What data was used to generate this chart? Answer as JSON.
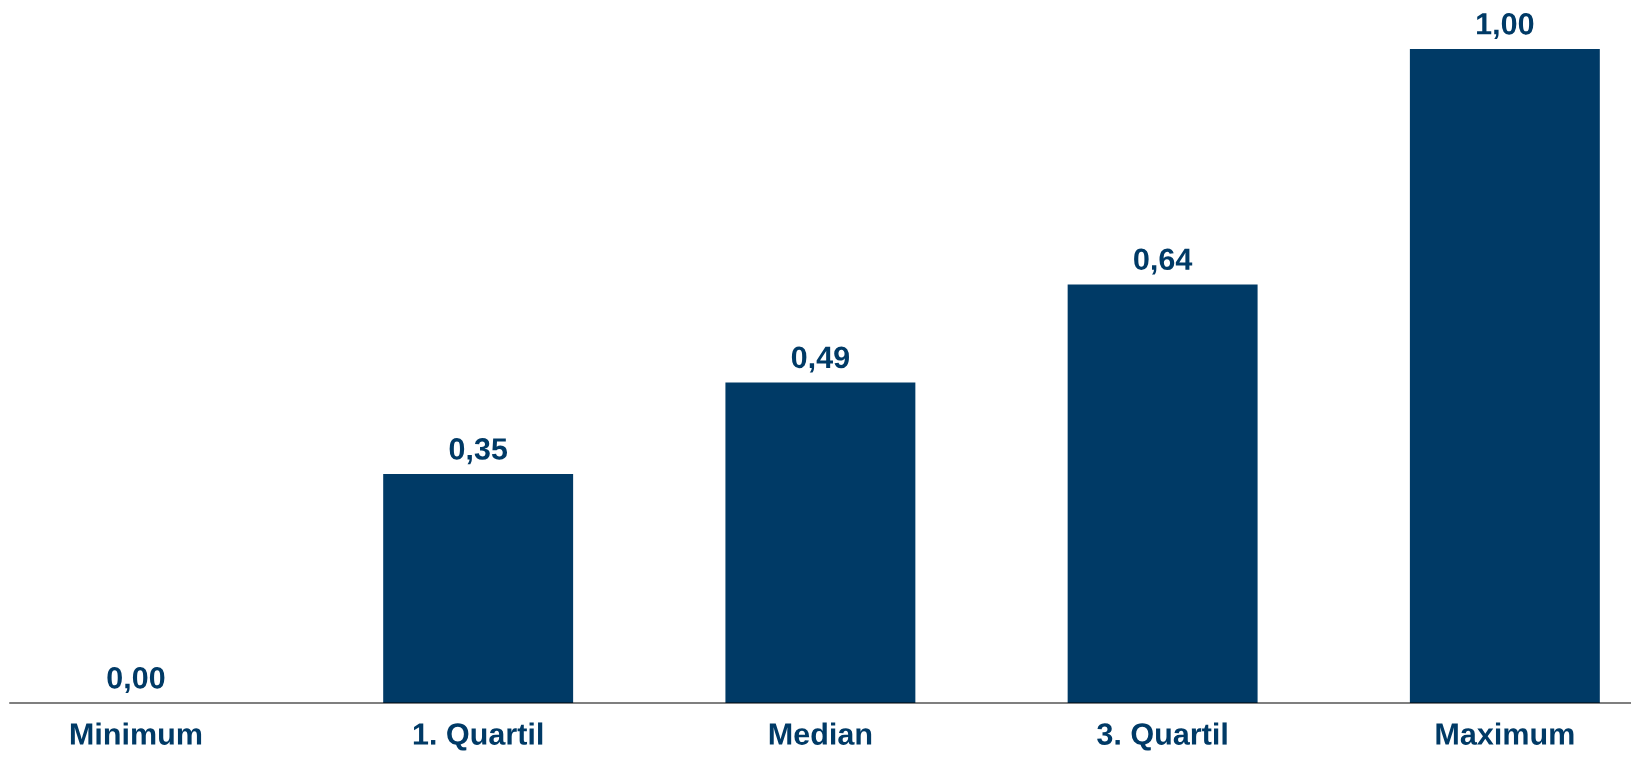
{
  "chart_data": {
    "type": "bar",
    "categories": [
      "Minimum",
      "1. Quartil",
      "Median",
      "3. Quartil",
      "Maximum"
    ],
    "values": [
      0.0,
      0.35,
      0.49,
      0.64,
      1.0
    ],
    "value_labels": [
      "0,00",
      "0,35",
      "0,49",
      "0,64",
      "1,00"
    ],
    "color": "#003a66",
    "grid": false,
    "legend": false
  }
}
